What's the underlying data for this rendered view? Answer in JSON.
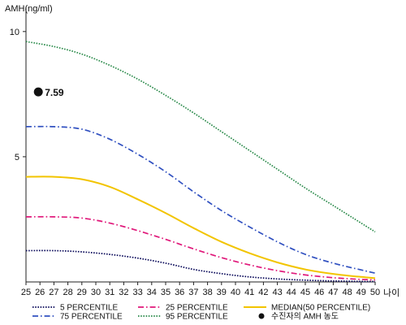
{
  "chart_data": {
    "type": "line",
    "ylabel": "AMH(ng/ml)",
    "xlabel": "나이",
    "xlim": [
      25,
      50
    ],
    "ylim": [
      0,
      11
    ],
    "x_ticks": [
      25,
      26,
      27,
      28,
      29,
      30,
      31,
      32,
      33,
      34,
      35,
      36,
      37,
      38,
      39,
      40,
      41,
      42,
      43,
      44,
      45,
      46,
      47,
      48,
      49,
      50
    ],
    "y_ticks": [
      5,
      10
    ],
    "grid": false,
    "legend_position": "bottom",
    "series": [
      {
        "name": "5 PERCENTILE",
        "color": "#0a0a5a",
        "style": "dotted",
        "x": [
          25,
          27,
          29,
          31,
          33,
          35,
          37,
          39,
          41,
          43,
          45,
          47,
          49,
          50
        ],
        "values": [
          1.25,
          1.25,
          1.2,
          1.1,
          0.95,
          0.75,
          0.5,
          0.33,
          0.2,
          0.12,
          0.07,
          0.04,
          0.02,
          0.02
        ]
      },
      {
        "name": "25 PERCENTILE",
        "color": "#e0187a",
        "style": "dashdot",
        "x": [
          25,
          27,
          29,
          31,
          33,
          35,
          37,
          39,
          41,
          43,
          45,
          47,
          49,
          50
        ],
        "values": [
          2.6,
          2.6,
          2.55,
          2.35,
          2.05,
          1.7,
          1.32,
          0.97,
          0.68,
          0.45,
          0.28,
          0.17,
          0.1,
          0.08
        ]
      },
      {
        "name": "75 PERCENTILE",
        "color": "#3050c0",
        "style": "dashdot",
        "x": [
          25,
          27,
          29,
          31,
          33,
          35,
          37,
          39,
          41,
          43,
          45,
          47,
          49,
          50
        ],
        "values": [
          6.2,
          6.2,
          6.1,
          5.7,
          5.1,
          4.4,
          3.6,
          2.85,
          2.2,
          1.6,
          1.1,
          0.75,
          0.48,
          0.35
        ]
      },
      {
        "name": "95 PERCENTILE",
        "color": "#2a8a4a",
        "style": "dotted",
        "x": [
          25,
          27,
          29,
          31,
          33,
          35,
          37,
          39,
          41,
          43,
          45,
          47,
          49,
          50
        ],
        "values": [
          9.6,
          9.4,
          9.1,
          8.65,
          8.1,
          7.45,
          6.75,
          6.0,
          5.25,
          4.5,
          3.75,
          3.05,
          2.35,
          2.0
        ]
      },
      {
        "name": "MEDIAN(50 PERCENTILE)",
        "color": "#f2c400",
        "style": "solid",
        "x": [
          25,
          27,
          29,
          31,
          33,
          35,
          37,
          39,
          41,
          43,
          45,
          47,
          49,
          50
        ],
        "values": [
          4.2,
          4.2,
          4.1,
          3.8,
          3.3,
          2.75,
          2.15,
          1.6,
          1.15,
          0.78,
          0.5,
          0.32,
          0.2,
          0.15
        ]
      }
    ],
    "highlight_point": {
      "name": "수진자의 AMH 농도",
      "x": 26,
      "y": 7.59,
      "label": "7.59",
      "color": "#111111"
    },
    "legend_order": [
      "5 PERCENTILE",
      "25 PERCENTILE",
      "MEDIAN(50 PERCENTILE)",
      "75 PERCENTILE",
      "95 PERCENTILE",
      "수진자의 AMH 농도"
    ]
  }
}
